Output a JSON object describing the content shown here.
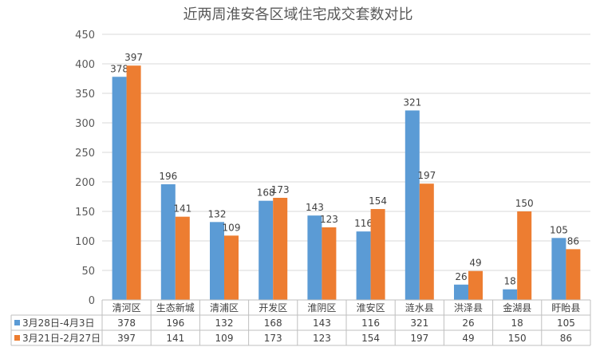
{
  "chart_data": {
    "type": "bar",
    "title": "近两周淮安各区域住宅成交套数对比",
    "categories": [
      "清河区",
      "生态新城",
      "清浦区",
      "开发区",
      "淮阴区",
      "淮安区",
      "涟水县",
      "洪泽县",
      "金湖县",
      "盱眙县"
    ],
    "series": [
      {
        "name": "3月28日-4月3日",
        "color": "#5b9bd5",
        "values": [
          378,
          196,
          132,
          168,
          143,
          116,
          321,
          26,
          18,
          105
        ]
      },
      {
        "name": "3月21日-2月27日",
        "color": "#ed7d31",
        "values": [
          397,
          141,
          109,
          173,
          123,
          154,
          197,
          49,
          150,
          86
        ]
      }
    ],
    "ylim": [
      0,
      450
    ],
    "yticks": [
      0,
      50,
      100,
      150,
      200,
      250,
      300,
      350,
      400,
      450
    ],
    "grid": true,
    "data_labels": true,
    "legend": "data-table-below"
  }
}
